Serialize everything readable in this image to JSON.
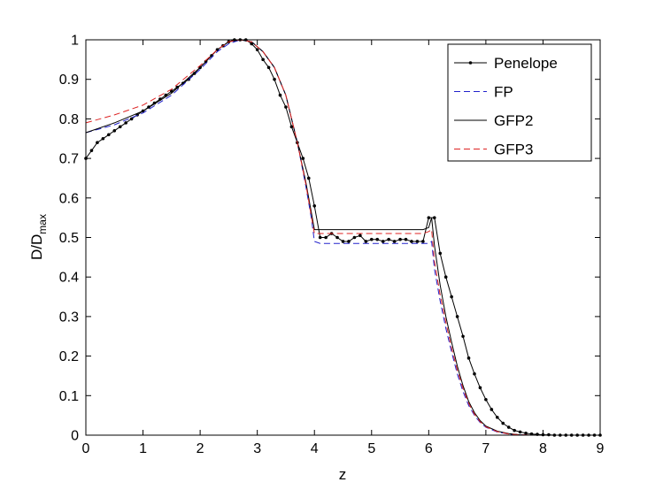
{
  "chart_data": {
    "type": "line",
    "xlabel": "z",
    "ylabel_main": "D/D",
    "ylabel_sub": "max",
    "xlim": [
      0,
      9
    ],
    "ylim": [
      0,
      1
    ],
    "xticks": [
      "0",
      "1",
      "2",
      "3",
      "4",
      "5",
      "6",
      "7",
      "8",
      "9"
    ],
    "yticks": [
      "0",
      "0.1",
      "0.2",
      "0.3",
      "0.4",
      "0.5",
      "0.6",
      "0.7",
      "0.8",
      "0.9",
      "1"
    ],
    "grid": false,
    "legend_position": "top-right",
    "series": [
      {
        "name": "Penelope",
        "color": "#000000",
        "dash": "solid",
        "marker": "dot",
        "x": [
          0,
          0.1,
          0.2,
          0.3,
          0.4,
          0.5,
          0.6,
          0.7,
          0.8,
          0.9,
          1.0,
          1.1,
          1.2,
          1.3,
          1.4,
          1.5,
          1.6,
          1.7,
          1.8,
          1.9,
          2.0,
          2.1,
          2.2,
          2.3,
          2.4,
          2.5,
          2.6,
          2.7,
          2.8,
          2.9,
          3.0,
          3.1,
          3.2,
          3.3,
          3.4,
          3.5,
          3.6,
          3.7,
          3.8,
          3.9,
          4.0,
          4.1,
          4.2,
          4.3,
          4.4,
          4.5,
          4.6,
          4.7,
          4.8,
          4.9,
          5.0,
          5.1,
          5.2,
          5.3,
          5.4,
          5.5,
          5.6,
          5.7,
          5.8,
          5.9,
          6.0,
          6.1,
          6.2,
          6.3,
          6.4,
          6.5,
          6.6,
          6.7,
          6.8,
          6.9,
          7.0,
          7.1,
          7.2,
          7.3,
          7.4,
          7.5,
          7.6,
          7.7,
          7.8,
          7.9,
          8.0,
          8.1,
          8.2,
          8.3,
          8.4,
          8.5,
          8.6,
          8.7,
          8.8,
          8.9,
          9.0
        ],
        "y": [
          0.7,
          0.72,
          0.74,
          0.75,
          0.76,
          0.77,
          0.78,
          0.79,
          0.8,
          0.81,
          0.82,
          0.83,
          0.84,
          0.85,
          0.86,
          0.87,
          0.88,
          0.89,
          0.9,
          0.915,
          0.93,
          0.945,
          0.96,
          0.975,
          0.985,
          0.995,
          1.0,
          1.0,
          1.0,
          0.99,
          0.975,
          0.95,
          0.93,
          0.9,
          0.86,
          0.83,
          0.78,
          0.74,
          0.7,
          0.65,
          0.58,
          0.5,
          0.5,
          0.51,
          0.5,
          0.49,
          0.49,
          0.5,
          0.505,
          0.49,
          0.495,
          0.495,
          0.49,
          0.495,
          0.49,
          0.495,
          0.495,
          0.49,
          0.49,
          0.49,
          0.55,
          0.55,
          0.46,
          0.4,
          0.35,
          0.3,
          0.25,
          0.195,
          0.155,
          0.12,
          0.09,
          0.065,
          0.045,
          0.03,
          0.02,
          0.012,
          0.008,
          0.005,
          0.003,
          0.002,
          0.001,
          0.001,
          0,
          0,
          0,
          0,
          0,
          0,
          0,
          0,
          0
        ]
      },
      {
        "name": "FP",
        "color": "#2222cc",
        "dash": "dashed",
        "marker": "none",
        "x": [
          0,
          0.5,
          1.0,
          1.5,
          2.0,
          2.3,
          2.5,
          2.7,
          2.9,
          3.1,
          3.3,
          3.5,
          3.7,
          3.85,
          3.95,
          4.0,
          4.1,
          5.0,
          5.9,
          6.0,
          6.05,
          6.1,
          6.2,
          6.3,
          6.4,
          6.5,
          6.6,
          6.7,
          6.8,
          6.9,
          7.0,
          7.2,
          7.4,
          7.6,
          7.8,
          8.0,
          9.0
        ],
        "y": [
          0.765,
          0.785,
          0.815,
          0.86,
          0.925,
          0.97,
          0.99,
          1.0,
          0.995,
          0.97,
          0.93,
          0.86,
          0.74,
          0.63,
          0.545,
          0.49,
          0.485,
          0.485,
          0.485,
          0.485,
          0.49,
          0.42,
          0.34,
          0.27,
          0.21,
          0.155,
          0.11,
          0.075,
          0.05,
          0.032,
          0.02,
          0.008,
          0.003,
          0.001,
          0,
          0,
          0
        ]
      },
      {
        "name": "GFP2",
        "color": "#000000",
        "dash": "solid",
        "marker": "none",
        "x": [
          0,
          0.5,
          1.0,
          1.5,
          2.0,
          2.3,
          2.5,
          2.7,
          2.9,
          3.1,
          3.3,
          3.5,
          3.7,
          3.85,
          3.95,
          4.0,
          4.1,
          5.0,
          5.9,
          6.0,
          6.05,
          6.1,
          6.2,
          6.3,
          6.4,
          6.5,
          6.6,
          6.7,
          6.8,
          6.9,
          7.0,
          7.2,
          7.4,
          7.6,
          7.8,
          8.0,
          9.0
        ],
        "y": [
          0.765,
          0.79,
          0.82,
          0.865,
          0.93,
          0.975,
          0.995,
          1.0,
          0.995,
          0.97,
          0.93,
          0.86,
          0.74,
          0.64,
          0.56,
          0.52,
          0.52,
          0.52,
          0.52,
          0.525,
          0.55,
          0.48,
          0.38,
          0.3,
          0.235,
          0.175,
          0.125,
          0.085,
          0.057,
          0.037,
          0.023,
          0.01,
          0.004,
          0.001,
          0,
          0,
          0
        ]
      },
      {
        "name": "GFP3",
        "color": "#dd2222",
        "dash": "dashed",
        "marker": "none",
        "x": [
          0,
          0.5,
          1.0,
          1.5,
          2.0,
          2.3,
          2.5,
          2.7,
          2.9,
          3.1,
          3.3,
          3.5,
          3.7,
          3.85,
          3.95,
          4.0,
          4.1,
          5.0,
          5.9,
          6.0,
          6.05,
          6.1,
          6.2,
          6.3,
          6.4,
          6.5,
          6.6,
          6.7,
          6.8,
          6.9,
          7.0,
          7.2,
          7.4,
          7.6,
          7.8,
          8.0,
          9.0
        ],
        "y": [
          0.79,
          0.81,
          0.835,
          0.875,
          0.935,
          0.975,
          0.995,
          1.0,
          0.995,
          0.97,
          0.93,
          0.86,
          0.74,
          0.635,
          0.55,
          0.51,
          0.51,
          0.51,
          0.51,
          0.515,
          0.52,
          0.44,
          0.355,
          0.285,
          0.22,
          0.165,
          0.118,
          0.08,
          0.053,
          0.034,
          0.021,
          0.009,
          0.003,
          0.001,
          0,
          0,
          0
        ]
      }
    ]
  }
}
